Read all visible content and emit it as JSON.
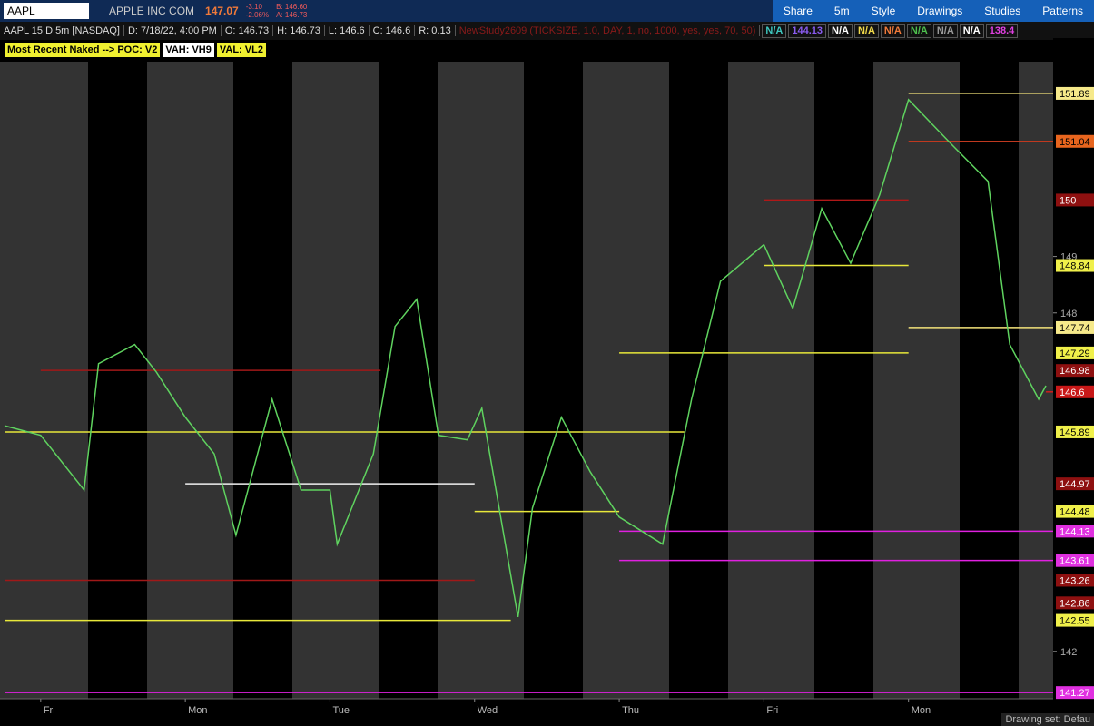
{
  "toolbar": {
    "symbol": "AAPL",
    "company": "APPLE INC COM",
    "last": "147.07",
    "change": "-3.10",
    "change_pct": "-2.06%",
    "bid": "B: 146.60",
    "ask": "A: 146.73",
    "buttons": [
      "Share",
      "5m",
      "Style",
      "Drawings",
      "Studies",
      "Patterns"
    ]
  },
  "info_bar": {
    "items": [
      "AAPL 15 D 5m [NASDAQ]",
      "D: 7/18/22, 4:00 PM",
      "O: 146.73",
      "H: 146.73",
      "L: 146.6",
      "C: 146.6",
      "R: 0.13"
    ],
    "study": "NewStudy2609 (TICKSIZE, 1.0, DAY, 1, no, 1000, yes, yes, 70, 50)",
    "study_values": [
      {
        "text": "N/A",
        "color": "#3fc8c0"
      },
      {
        "text": "144.13",
        "color": "#8a5cf0"
      },
      {
        "text": "N/A",
        "color": "#ffffff"
      },
      {
        "text": "N/A",
        "color": "#f0d84a"
      },
      {
        "text": "N/A",
        "color": "#f07a3a"
      },
      {
        "text": "N/A",
        "color": "#4ec04e"
      },
      {
        "text": "N/A",
        "color": "#9a9a9a"
      },
      {
        "text": "N/A",
        "color": "#ffffff"
      },
      {
        "text": "138.4",
        "color": "#e040e0"
      }
    ]
  },
  "badges": [
    "Most Recent Naked --> POC: V2",
    "VAH: VH9",
    "VAL: VL2"
  ],
  "footer": "Drawing set: Defau",
  "chart_data": {
    "type": "line",
    "x": [
      -0.25,
      0,
      0.3,
      0.4,
      0.65,
      0.8,
      1.0,
      1.2,
      1.35,
      1.6,
      1.8,
      2.0,
      2.05,
      2.3,
      2.45,
      2.6,
      2.75,
      2.95,
      3.05,
      3.3,
      3.4,
      3.6,
      3.8,
      4.0,
      4.3,
      4.5,
      4.7,
      5.0,
      5.2,
      5.4,
      5.6,
      5.8,
      6.0,
      6.3,
      6.55,
      6.7,
      6.9,
      6.95
    ],
    "series": [
      {
        "color": "#5fd35f",
        "values": [
          146.0,
          145.83,
          144.86,
          147.1,
          147.44,
          146.95,
          146.15,
          145.5,
          144.06,
          146.47,
          144.86,
          144.86,
          143.9,
          145.5,
          147.76,
          148.24,
          145.83,
          145.75,
          146.31,
          142.61,
          144.54,
          146.15,
          145.18,
          144.38,
          143.9,
          146.47,
          148.56,
          149.21,
          148.08,
          149.85,
          148.88,
          150.09,
          151.78,
          150.98,
          150.33,
          147.44,
          146.47,
          146.71
        ]
      }
    ],
    "xlim": [
      -0.25,
      7
    ],
    "ylim": [
      141.16,
      152.87
    ],
    "xticks": [
      {
        "value": 0,
        "label": "Fri"
      },
      {
        "value": 1,
        "label": "Mon"
      },
      {
        "value": 2,
        "label": "Tue"
      },
      {
        "value": 3,
        "label": "Wed"
      },
      {
        "value": 4,
        "label": "Thu"
      },
      {
        "value": 5,
        "label": "Fri"
      },
      {
        "value": 6,
        "label": "Mon"
      }
    ],
    "yticks": [
      142,
      148,
      149
    ],
    "levels": [
      {
        "value": 151.89,
        "from": 6,
        "to": 7,
        "color": "#f3e27a",
        "tag_color": "#f6e98a",
        "text_color": "#000000"
      },
      {
        "value": 151.04,
        "from": 6,
        "to": 7,
        "color": "#c0391f",
        "tag_color": "#e8651e",
        "text_color": "#000000"
      },
      {
        "value": 150,
        "from": 5,
        "to": 6,
        "color": "#b01818",
        "tag_color": "#8e1010",
        "text_color": "#ffffff"
      },
      {
        "value": 148.84,
        "from": 5,
        "to": 6,
        "color": "#e8e83a",
        "tag_color": "#f0f04a",
        "text_color": "#000000"
      },
      {
        "value": 147.74,
        "from": 6,
        "to": 7,
        "color": "#f3e27a",
        "tag_color": "#f6e98a",
        "text_color": "#000000"
      },
      {
        "value": 147.29,
        "from": 4,
        "to": 6,
        "color": "#e8e83a",
        "tag_color": "#f0f04a",
        "text_color": "#000000"
      },
      {
        "value": 146.98,
        "from": 0,
        "to": 2.35,
        "color": "#a01818",
        "tag_color": "#8e1010",
        "text_color": "#ffffff"
      },
      {
        "value": 146.6,
        "from": 6.95,
        "to": 7,
        "color": "#d01c1c",
        "tag_color": "#c81818",
        "text_color": "#ffffff"
      },
      {
        "value": 145.89,
        "from": -0.25,
        "to": 4.45,
        "color": "#e8e83a",
        "tag_color": "#f0f04a",
        "text_color": "#000000"
      },
      {
        "value": 144.97,
        "from": 1,
        "to": 3,
        "color": "#f0f0f0",
        "tag_color": "#8e1010",
        "text_color": "#ffffff"
      },
      {
        "value": 144.48,
        "from": 3,
        "to": 4,
        "color": "#e8e83a",
        "tag_color": "#f0f04a",
        "text_color": "#000000"
      },
      {
        "value": 144.13,
        "from": 4,
        "to": 7,
        "color": "#e020e0",
        "tag_color": "#e030e0",
        "text_color": "#ffffff"
      },
      {
        "value": 143.61,
        "from": 4,
        "to": 7,
        "color": "#e020e0",
        "tag_color": "#e030e0",
        "text_color": "#ffffff"
      },
      {
        "value": 143.26,
        "from": -0.25,
        "to": 3,
        "color": "#a01818",
        "tag_color": "#8e1010",
        "text_color": "#ffffff"
      },
      {
        "value": 142.86,
        "from": -0.25,
        "to": -0.25,
        "color": "#a01818",
        "tag_color": "#8e1010",
        "text_color": "#ffffff"
      },
      {
        "value": 142.55,
        "from": -0.25,
        "to": 3.25,
        "color": "#e8e83a",
        "tag_color": "#f0f04a",
        "text_color": "#000000"
      },
      {
        "value": 141.27,
        "from": -0.25,
        "to": 7,
        "color": "#e020e0",
        "tag_color": "#e030e0",
        "text_color": "#ffffff"
      }
    ]
  }
}
